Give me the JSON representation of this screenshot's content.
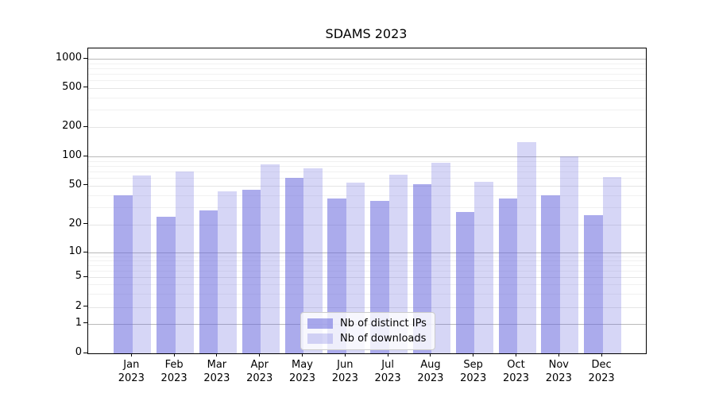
{
  "chart_data": {
    "type": "bar",
    "title": "SDAMS 2023",
    "x": {
      "months": [
        "Jan",
        "Feb",
        "Mar",
        "Apr",
        "May",
        "Jun",
        "Jul",
        "Aug",
        "Sep",
        "Oct",
        "Nov",
        "Dec"
      ],
      "year_label": "2023"
    },
    "series": [
      {
        "name": "Nb of distinct IPs",
        "color": "#6666dd",
        "alpha": 0.55,
        "values": [
          40,
          24,
          28,
          45,
          60,
          37,
          35,
          52,
          27,
          37,
          40,
          25
        ]
      },
      {
        "name": "Nb of downloads",
        "color": "#6666dd",
        "alpha": 0.27,
        "values": [
          64,
          70,
          44,
          83,
          75,
          54,
          65,
          86,
          55,
          140,
          100,
          61
        ]
      }
    ],
    "y_axis": {
      "scale": "symlog",
      "tick_labels": [
        "0",
        "1",
        "2",
        "5",
        "10",
        "20",
        "50",
        "100",
        "200",
        "500",
        "1000"
      ],
      "ticks": [
        {
          "value": 0,
          "frac": 0.0
        },
        {
          "value": 1,
          "frac": 0.0971
        },
        {
          "value": 2,
          "frac": 0.1518
        },
        {
          "value": 5,
          "frac": 0.2492
        },
        {
          "value": 10,
          "frac": 0.33
        },
        {
          "value": 20,
          "frac": 0.4227
        },
        {
          "value": 50,
          "frac": 0.5503
        },
        {
          "value": 100,
          "frac": 0.6458
        },
        {
          "value": 200,
          "frac": 0.7414
        },
        {
          "value": 500,
          "frac": 0.8698
        },
        {
          "value": 1000,
          "frac": 0.966
        }
      ],
      "minor_tick_values": [
        3,
        4,
        6,
        7,
        8,
        9,
        30,
        40,
        60,
        70,
        80,
        90,
        300,
        400,
        600,
        700,
        800,
        900
      ]
    },
    "grid": {
      "decade_line_color": "#b9b9b9",
      "major_line_color": "#e5e5e5",
      "minor_line_color": "#f1f1f1"
    },
    "legend": {
      "position": "lower center"
    }
  }
}
